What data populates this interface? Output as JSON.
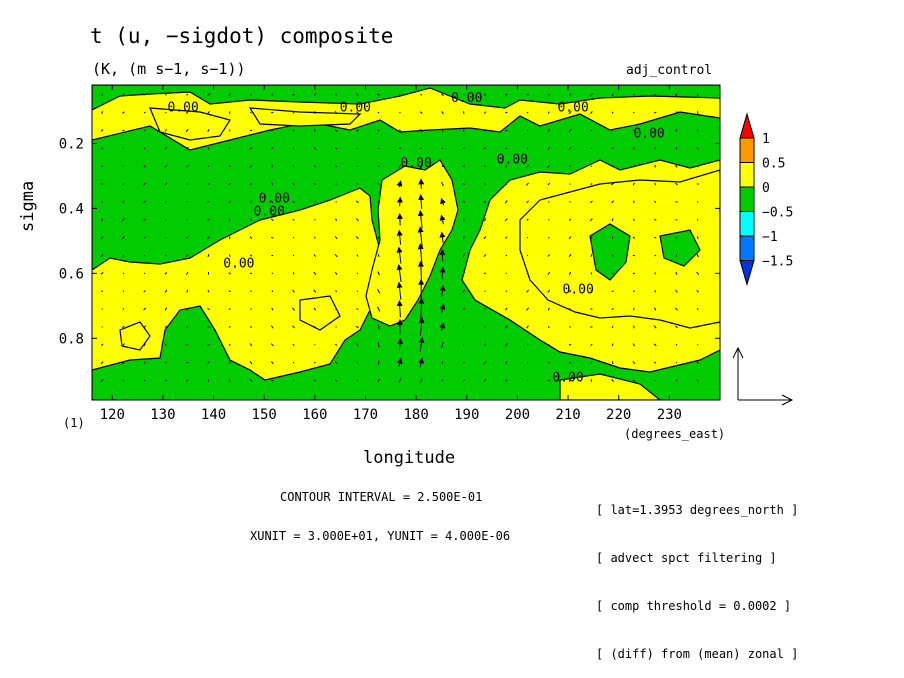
{
  "header": {
    "title": "t (u, −sigdot) composite",
    "subtitle": "(K, (m s−1, s−1))",
    "dataset": "adj_control"
  },
  "footer": {
    "contour_interval": "CONTOUR INTERVAL = 2.500E-01",
    "units": "XUNIT = 3.000E+01, YUNIT = 4.000E-06",
    "page_mark": "(1)",
    "notes": [
      "[ lat=1.3953 degrees_north ]",
      "[ advect spct filtering ]",
      "[ comp threshold = 0.0002 ]",
      "[ (diff) from (mean) zonal ]"
    ]
  },
  "chart_data": {
    "type": "heatmap",
    "title": "t (u, −sigdot) composite",
    "subtitle": "(K, (m s−1, s−1))",
    "xlabel": "longitude",
    "xunits": "(degrees_east)",
    "ylabel": "sigma",
    "xlim": [
      116,
      240
    ],
    "ylim": [
      0.02,
      0.99
    ],
    "y_inverted": true,
    "xticks": [
      120,
      130,
      140,
      150,
      160,
      170,
      180,
      190,
      200,
      210,
      220,
      230
    ],
    "yticks": [
      0.2,
      0.4,
      0.6,
      0.8
    ],
    "contour_interval": 0.25,
    "contour_labels": [
      "0.00",
      "0.00",
      "0.00",
      "0.00",
      "0.00",
      "0.00",
      "0.00",
      "0.00",
      "0.00",
      "0.00",
      "0.00",
      "0.00"
    ],
    "colorbar": {
      "levels": [
        "1",
        "0.5",
        "0",
        "−0.5",
        "−1",
        "−1.5"
      ],
      "colors": [
        "#ff0000",
        "#ff9900",
        "#ffff00",
        "#00cc00",
        "#00ffff",
        "#0077ff",
        "#0033dd"
      ]
    },
    "vector_units": {
      "x": 30,
      "y": 4e-06
    },
    "dataset": "adj_control",
    "notes": [
      "[ lat=1.3953 degrees_north ]",
      "[ advect spct filtering ]",
      "[ comp threshold = 0.0002 ]",
      "[ (diff) from (mean) zonal ]"
    ]
  }
}
